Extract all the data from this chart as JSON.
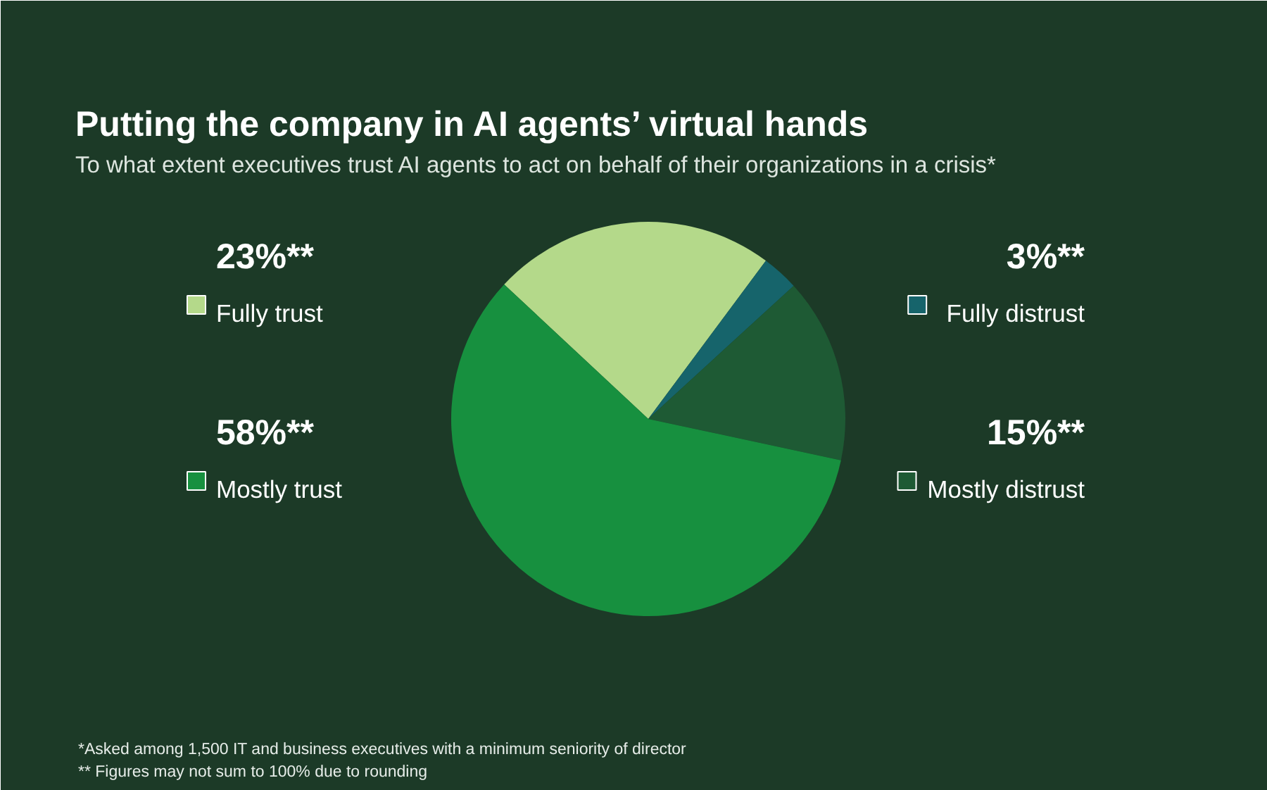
{
  "chart_data": {
    "type": "pie",
    "title": "Putting the company in AI agents’ virtual hands",
    "subtitle": "To what extent executives trust AI agents to act on behalf of their organizations in a crisis*",
    "categories": [
      "Fully trust",
      "Fully distrust",
      "Mostly distrust",
      "Mostly trust"
    ],
    "values": [
      23,
      3,
      15,
      58
    ],
    "value_labels": [
      "23%**",
      "3%**",
      "15%**",
      "58%**"
    ],
    "legend": "center",
    "colors": [
      "#b4d98a",
      "#16646b",
      "#1e5a34",
      "#17903f"
    ],
    "annotations": [
      "*Asked among 1,500 IT and business executives with a minimum seniority of director",
      "** Figures may not sum to 100% due to rounding"
    ]
  }
}
